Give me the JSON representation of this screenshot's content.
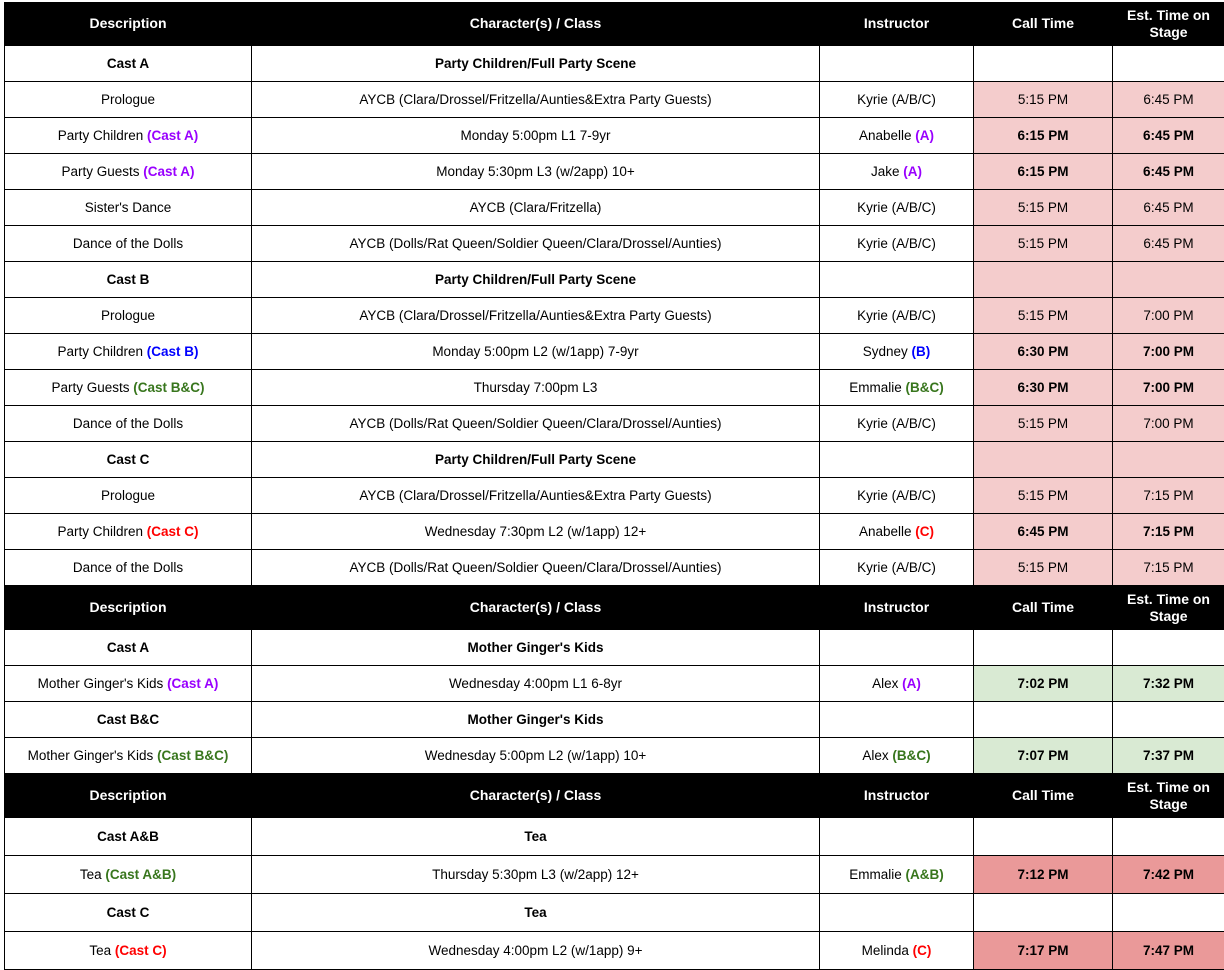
{
  "table": {
    "columns": [
      "Description",
      "Character(s) / Class",
      "Instructor",
      "Call Time",
      "Est. Time on Stage"
    ],
    "colors": {
      "white": "#ffffff",
      "pink": "#f4cccc",
      "green": "#d9ead3",
      "salmon": "#ea9999",
      "purple": "#9900ff",
      "blue": "#0000ff",
      "dark_green": "#38761d",
      "red": "#ff0000"
    },
    "sections": [
      {
        "name": "party-scene",
        "rows": [
          {
            "type": "separator",
            "desc": "Cast A",
            "class": "Party Children/Full Party Scene",
            "time_bg": "white"
          },
          {
            "type": "item",
            "desc": "Prologue",
            "class": "AYCB (Clara/Drossel/Fritzella/Aunties&Extra Party Guests)",
            "instructor": "Kyrie (A/B/C)",
            "call": "5:15 PM",
            "est": "6:45 PM",
            "bold_times": false,
            "time_bg": "pink"
          },
          {
            "type": "item",
            "desc": "Party Children",
            "desc_suffix": "(Cast A)",
            "suffix_color": "purple",
            "class": "Monday 5:00pm L1 7-9yr",
            "instructor": "Anabelle",
            "instructor_suffix": "(A)",
            "call": "6:15 PM",
            "est": "6:45 PM",
            "bold_times": true,
            "time_bg": "pink"
          },
          {
            "type": "item",
            "desc": "Party Guests",
            "desc_suffix": "(Cast A)",
            "suffix_color": "purple",
            "class": "Monday 5:30pm L3 (w/2app) 10+",
            "instructor": "Jake",
            "instructor_suffix": "(A)",
            "call": "6:15 PM",
            "est": "6:45 PM",
            "bold_times": true,
            "time_bg": "pink"
          },
          {
            "type": "item",
            "desc": "Sister's Dance",
            "class": "AYCB (Clara/Fritzella)",
            "instructor": "Kyrie (A/B/C)",
            "call": "5:15 PM",
            "est": "6:45 PM",
            "bold_times": false,
            "time_bg": "pink"
          },
          {
            "type": "item",
            "desc": "Dance of the Dolls",
            "class": "AYCB (Dolls/Rat Queen/Soldier Queen/Clara/Drossel/Aunties)",
            "instructor": "Kyrie (A/B/C)",
            "call": "5:15 PM",
            "est": "6:45 PM",
            "bold_times": false,
            "time_bg": "pink"
          },
          {
            "type": "separator",
            "desc": "Cast B",
            "class": "Party Children/Full Party Scene",
            "time_bg": "pink"
          },
          {
            "type": "item",
            "desc": "Prologue",
            "class": "AYCB (Clara/Drossel/Fritzella/Aunties&Extra Party Guests)",
            "instructor": "Kyrie (A/B/C)",
            "call": "5:15 PM",
            "est": "7:00 PM",
            "bold_times": false,
            "time_bg": "pink"
          },
          {
            "type": "item",
            "desc": "Party Children",
            "desc_suffix": "(Cast B)",
            "suffix_color": "blue",
            "class": "Monday 5:00pm L2 (w/1app) 7-9yr",
            "instructor": "Sydney",
            "instructor_suffix": "(B)",
            "call": "6:30 PM",
            "est": "7:00 PM",
            "bold_times": true,
            "time_bg": "pink"
          },
          {
            "type": "item",
            "desc": "Party Guests",
            "desc_suffix": "(Cast B&C)",
            "suffix_color": "dark_green",
            "class": "Thursday 7:00pm L3",
            "instructor": "Emmalie",
            "instructor_suffix": "(B&C)",
            "call": "6:30 PM",
            "est": "7:00 PM",
            "bold_times": true,
            "time_bg": "pink"
          },
          {
            "type": "item",
            "desc": "Dance of the Dolls",
            "class": "AYCB (Dolls/Rat Queen/Soldier Queen/Clara/Drossel/Aunties)",
            "instructor": "Kyrie (A/B/C)",
            "call": "5:15 PM",
            "est": "7:00 PM",
            "bold_times": false,
            "time_bg": "pink"
          },
          {
            "type": "separator",
            "desc": "Cast C",
            "class": "Party Children/Full Party Scene",
            "time_bg": "pink"
          },
          {
            "type": "item",
            "desc": "Prologue",
            "class": "AYCB (Clara/Drossel/Fritzella/Aunties&Extra Party Guests)",
            "instructor": "Kyrie (A/B/C)",
            "call": "5:15 PM",
            "est": "7:15 PM",
            "bold_times": false,
            "time_bg": "pink"
          },
          {
            "type": "item",
            "desc": "Party Children",
            "desc_suffix": "(Cast C)",
            "suffix_color": "red",
            "class": "Wednesday 7:30pm L2 (w/1app) 12+",
            "instructor": "Anabelle",
            "instructor_suffix": "(C)",
            "call": "6:45 PM",
            "est": "7:15 PM",
            "bold_times": true,
            "time_bg": "pink"
          },
          {
            "type": "item",
            "desc": "Dance of the Dolls",
            "class": "AYCB (Dolls/Rat Queen/Soldier Queen/Clara/Drossel/Aunties)",
            "instructor": "Kyrie (A/B/C)",
            "call": "5:15 PM",
            "est": "7:15 PM",
            "bold_times": false,
            "time_bg": "pink"
          }
        ]
      },
      {
        "name": "mother-gingers-kids",
        "rows": [
          {
            "type": "separator",
            "desc": "Cast A",
            "class": "Mother Ginger's Kids",
            "time_bg": "white"
          },
          {
            "type": "item",
            "desc": "Mother Ginger's Kids",
            "desc_suffix": "(Cast A)",
            "suffix_color": "purple",
            "class": "Wednesday 4:00pm L1 6-8yr",
            "instructor": "Alex",
            "instructor_suffix": "(A)",
            "call": "7:02 PM",
            "est": "7:32 PM",
            "bold_times": true,
            "time_bg": "green"
          },
          {
            "type": "separator",
            "desc": "Cast B&C",
            "class": "Mother Ginger's Kids",
            "time_bg": "white"
          },
          {
            "type": "item",
            "desc": "Mother Ginger's Kids",
            "desc_suffix": "(Cast B&C)",
            "suffix_color": "dark_green",
            "class": "Wednesday 5:00pm L2 (w/1app) 10+",
            "instructor": "Alex",
            "instructor_suffix": "(B&C)",
            "call": "7:07 PM",
            "est": "7:37 PM",
            "bold_times": true,
            "time_bg": "green"
          }
        ]
      },
      {
        "name": "tea",
        "rows": [
          {
            "type": "separator",
            "desc": "Cast A&B",
            "class": "Tea",
            "time_bg": "white"
          },
          {
            "type": "item",
            "desc": "Tea",
            "desc_suffix": "(Cast A&B)",
            "suffix_color": "dark_green",
            "class": "Thursday 5:30pm L3 (w/2app) 12+",
            "instructor": "Emmalie",
            "instructor_suffix": "(A&B)",
            "call": "7:12 PM",
            "est": "7:42 PM",
            "bold_times": true,
            "time_bg": "salmon"
          },
          {
            "type": "separator",
            "desc": "Cast C",
            "class": "Tea",
            "time_bg": "white"
          },
          {
            "type": "item",
            "desc": "Tea",
            "desc_suffix": "(Cast C)",
            "suffix_color": "red",
            "class": "Wednesday 4:00pm L2 (w/1app) 9+",
            "instructor": "Melinda",
            "instructor_suffix": "(C)",
            "call": "7:17 PM",
            "est": "7:47 PM",
            "bold_times": true,
            "time_bg": "salmon"
          }
        ]
      }
    ]
  }
}
